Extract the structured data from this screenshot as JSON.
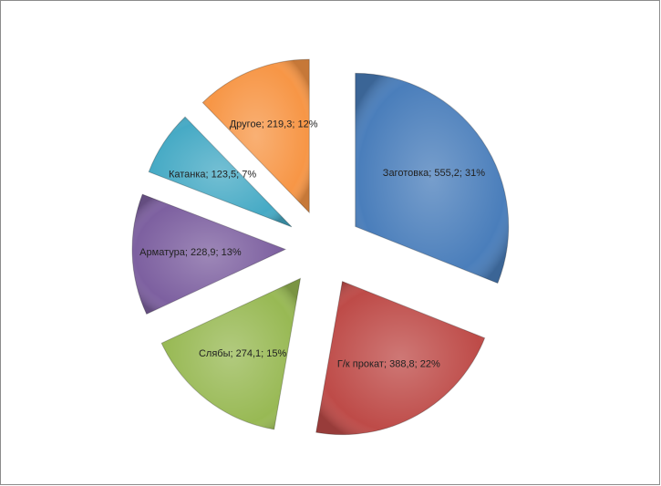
{
  "chart_data": {
    "type": "pie",
    "categories": [
      "Заготовка",
      "Г/к прокат",
      "Слябы",
      "Арматура",
      "Катанка",
      "Другое"
    ],
    "values": [
      555.2,
      388.8,
      274.1,
      228.9,
      123.5,
      219.3
    ],
    "value_labels": [
      "555,2",
      "388,8",
      "274,1",
      "228,9",
      "123,5",
      "219,3"
    ],
    "percents": [
      31,
      22,
      15,
      13,
      7,
      12
    ],
    "percent_labels": [
      "31%",
      "22%",
      "15%",
      "13%",
      "7%",
      "12%"
    ],
    "separator": "; ",
    "colors": [
      "#4a7ebb",
      "#be4b48",
      "#98b954",
      "#7d60a0",
      "#46aac5",
      "#f79646"
    ]
  }
}
